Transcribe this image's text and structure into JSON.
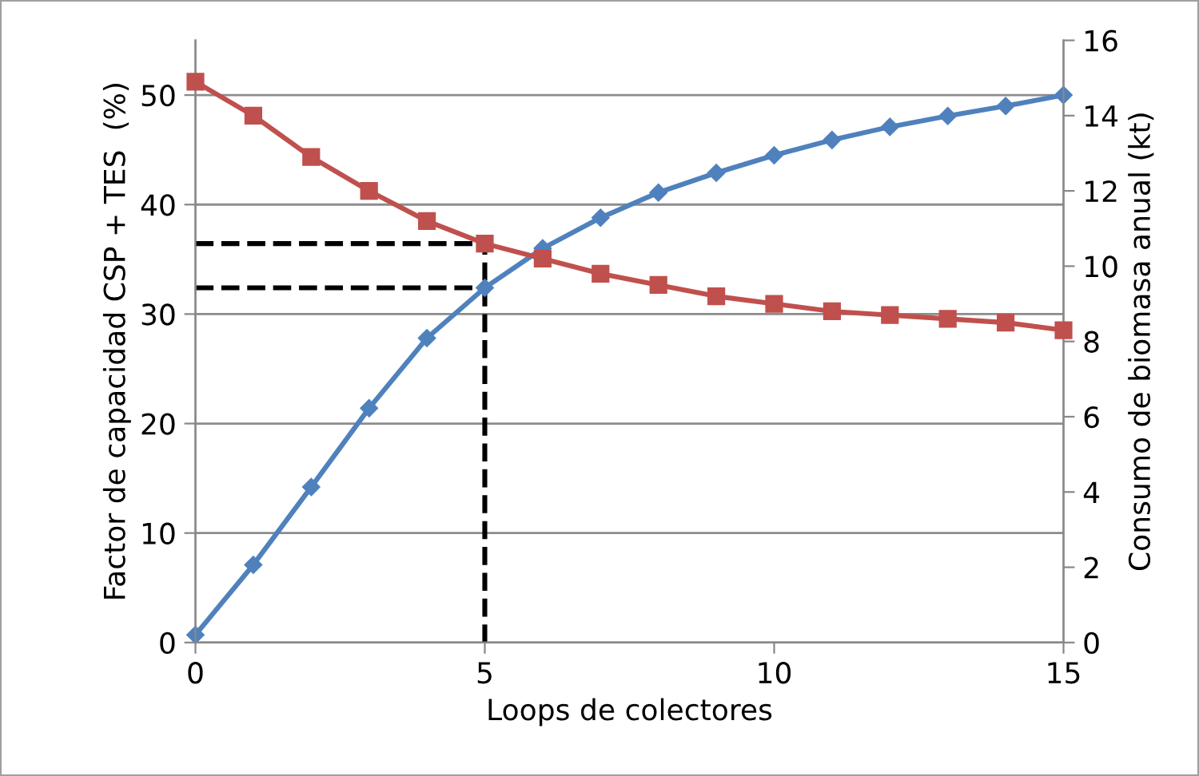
{
  "chart_data": {
    "type": "line",
    "xlabel": "Loops de colectores",
    "ylabel": "Factor de capacidad CSP + TES  (%)",
    "y2label": "Consumo de biomasa anual (kt)",
    "x": [
      0,
      1,
      2,
      3,
      4,
      5,
      6,
      7,
      8,
      9,
      10,
      11,
      12,
      13,
      14,
      15
    ],
    "series": [
      {
        "color": "#4f81bd",
        "marker": "diamond",
        "values": [
          0.7,
          7.1,
          14.2,
          21.4,
          27.8,
          32.4,
          36.0,
          38.8,
          41.1,
          42.9,
          44.5,
          45.9,
          47.1,
          48.1,
          49.0,
          50.0
        ]
      },
      {
        "color": "#c0504d",
        "marker": "square",
        "axis": "y2",
        "values": [
          14.9,
          14.0,
          12.9,
          12.0,
          11.2,
          10.6,
          10.2,
          9.8,
          9.5,
          9.2,
          9.0,
          8.8,
          8.7,
          8.6,
          8.5,
          8.3
        ]
      }
    ],
    "xlim": [
      0,
      15
    ],
    "xticks": [
      0,
      5,
      10,
      15
    ],
    "ylim": [
      0,
      55
    ],
    "yticks": [
      0,
      10,
      20,
      30,
      40,
      50
    ],
    "y2lim": [
      0,
      16
    ],
    "y2ticks": [
      0,
      2,
      4,
      6,
      8,
      10,
      12,
      14,
      16
    ],
    "grid": "y",
    "legend": false,
    "ref_lines": [
      {
        "axis": "y2",
        "value": 10.6,
        "color": "#000000",
        "line_style": "dashed"
      },
      {
        "axis": "y",
        "value": 32.4,
        "color": "#000000",
        "line_style": "dashed"
      },
      {
        "axis": "x",
        "value": 5,
        "color": "#000000",
        "line_style": "dashed"
      }
    ]
  }
}
